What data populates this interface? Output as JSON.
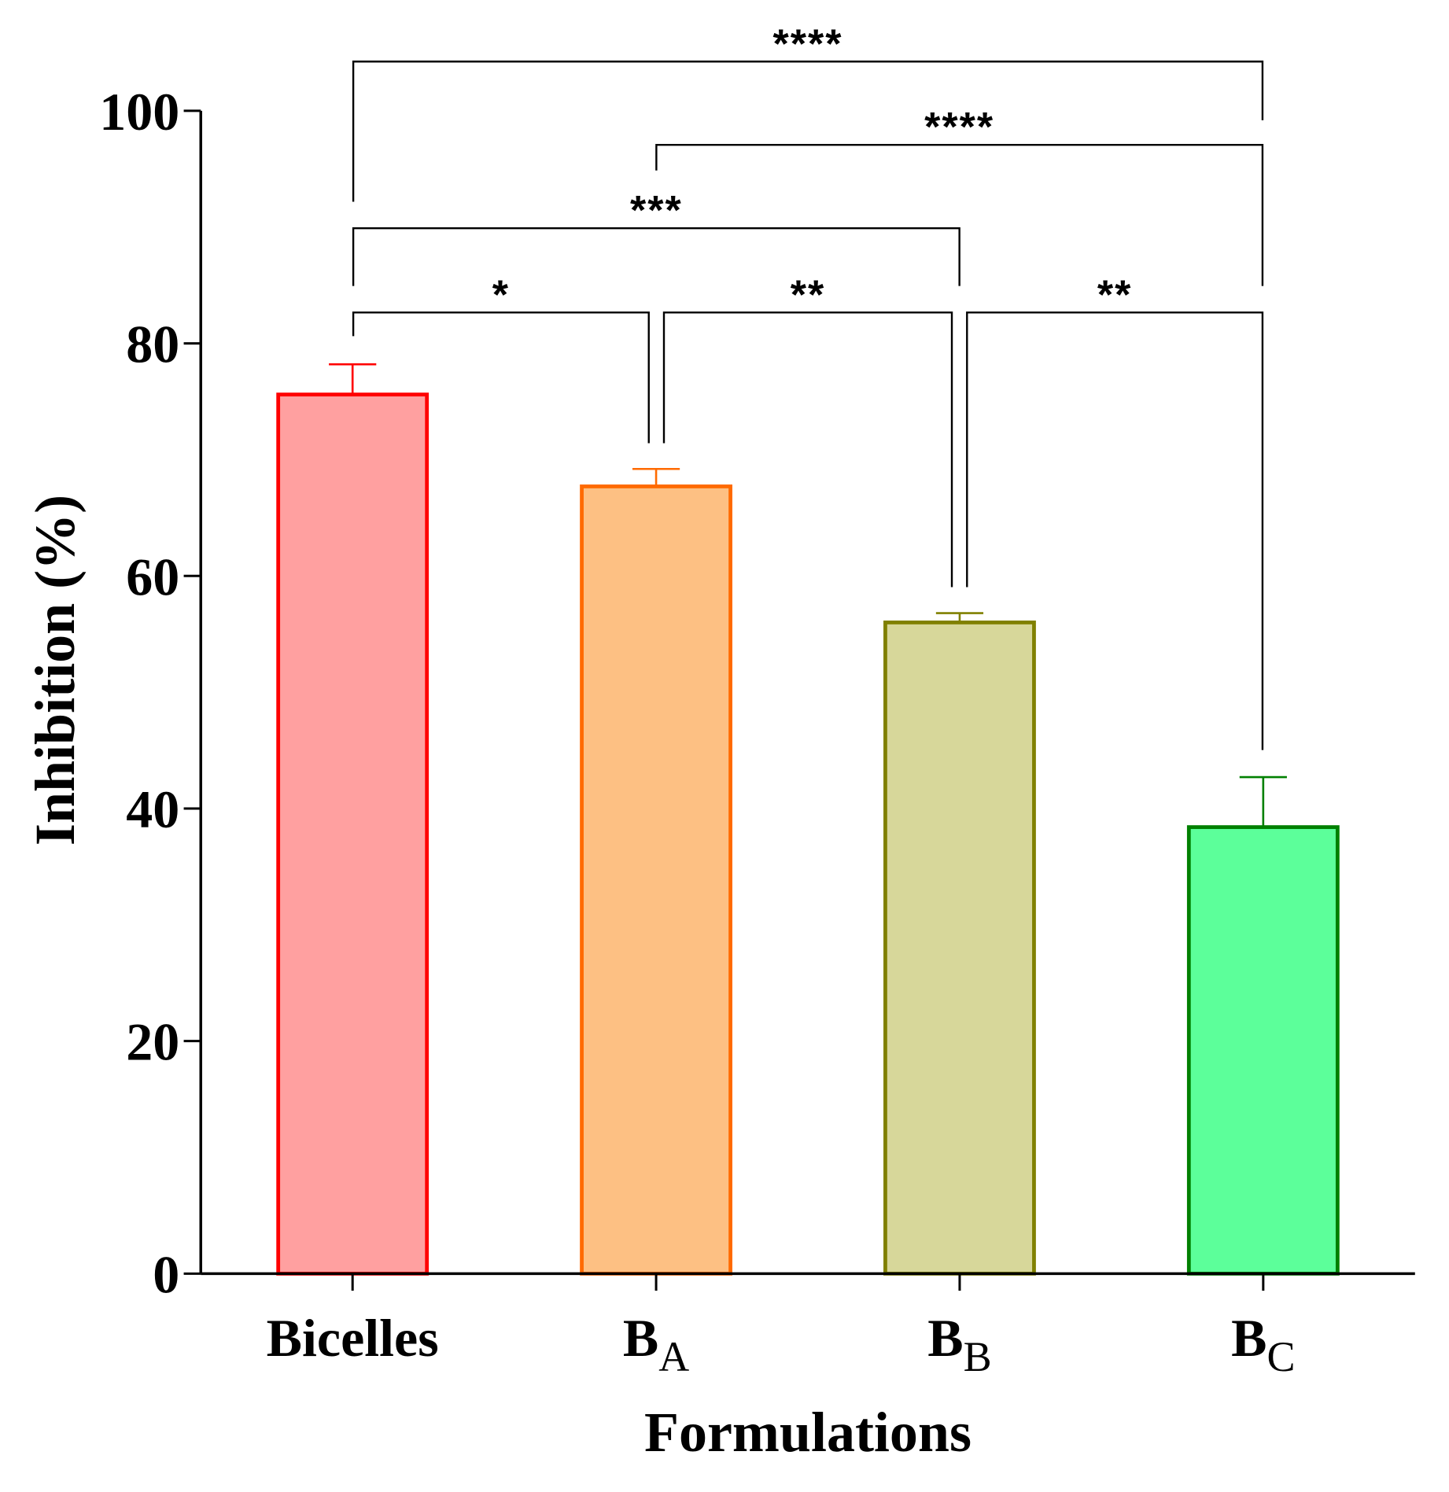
{
  "chart_data": {
    "type": "bar",
    "categories": [
      {
        "main": "Bicelles"
      },
      {
        "main": "B",
        "sub": "A"
      },
      {
        "main": "B",
        "sub": "B"
      },
      {
        "main": "B",
        "sub": "C"
      }
    ],
    "values": [
      75.6,
      67.7,
      56.0,
      38.4
    ],
    "errors": [
      2.6,
      1.5,
      0.8,
      4.3
    ],
    "fill_colors": [
      "#FFA0A0",
      "#FDC083",
      "#D7D79A",
      "#5CFF9A"
    ],
    "stroke_colors": [
      "#FF0000",
      "#FF6A00",
      "#808000",
      "#008000"
    ],
    "xlabel": "Formulations",
    "ylabel": "Inhibition (%)",
    "ylim": [
      0,
      100
    ],
    "yticks": [
      0,
      20,
      40,
      60,
      80,
      100
    ],
    "grid": false,
    "comparisons": [
      {
        "groups": [
          0,
          3
        ],
        "label": "****"
      },
      {
        "groups": [
          1,
          3
        ],
        "label": "****"
      },
      {
        "groups": [
          0,
          2
        ],
        "label": "***"
      },
      {
        "groups": [
          0,
          1
        ],
        "label": "*"
      },
      {
        "groups": [
          1,
          2
        ],
        "label": "**"
      },
      {
        "groups": [
          2,
          3
        ],
        "label": "**"
      }
    ]
  }
}
